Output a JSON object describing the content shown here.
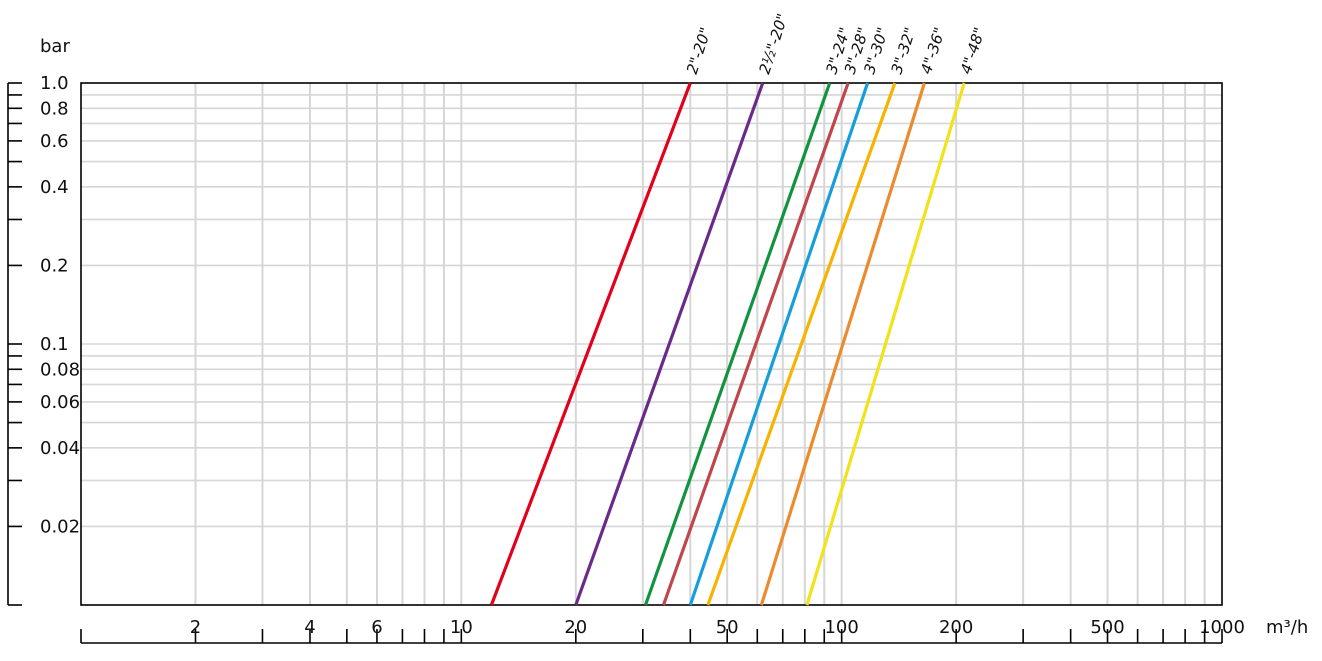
{
  "chart_data": {
    "type": "line",
    "title": "",
    "xlabel": "m³/h",
    "ylabel": "bar",
    "x_scale": "log",
    "y_scale": "log",
    "xlim": [
      1,
      1000
    ],
    "ylim": [
      0.01,
      1.0
    ],
    "grid": true,
    "x_tick_labels": [
      {
        "value": 2,
        "label": "2"
      },
      {
        "value": 4,
        "label": "4"
      },
      {
        "value": 6,
        "label": "6"
      },
      {
        "value": 10,
        "label": "10"
      },
      {
        "value": 20,
        "label": "20"
      },
      {
        "value": 50,
        "label": "50"
      },
      {
        "value": 100,
        "label": "100"
      },
      {
        "value": 200,
        "label": "200"
      },
      {
        "value": 500,
        "label": "500"
      },
      {
        "value": 1000,
        "label": "1000"
      }
    ],
    "y_tick_labels": [
      {
        "value": 1.0,
        "label": "1.0"
      },
      {
        "value": 0.8,
        "label": "0.8"
      },
      {
        "value": 0.6,
        "label": "0.6"
      },
      {
        "value": 0.4,
        "label": "0.4"
      },
      {
        "value": 0.2,
        "label": "0.2"
      },
      {
        "value": 0.1,
        "label": "0.1"
      },
      {
        "value": 0.08,
        "label": "0.08"
      },
      {
        "value": 0.06,
        "label": "0.06"
      },
      {
        "value": 0.04,
        "label": "0.04"
      },
      {
        "value": 0.02,
        "label": "0.02"
      }
    ],
    "series": [
      {
        "name": "2\"-20\"",
        "color": "#e2001a",
        "x": [
          12,
          40
        ],
        "y": [
          0.01,
          1.0
        ]
      },
      {
        "name": "2½\"-20\"",
        "color": "#6a2a8a",
        "x": [
          20,
          62
        ],
        "y": [
          0.01,
          1.0
        ]
      },
      {
        "name": "3\"-24\"",
        "color": "#119340",
        "x": [
          30.5,
          93
        ],
        "y": [
          0.01,
          1.0
        ]
      },
      {
        "name": "3\"-28\"",
        "color": "#c0464c",
        "x": [
          34,
          104
        ],
        "y": [
          0.01,
          1.0
        ]
      },
      {
        "name": "3\"-30\"",
        "color": "#159ed9",
        "x": [
          40,
          117
        ],
        "y": [
          0.01,
          1.0
        ]
      },
      {
        "name": "3\"-32\"",
        "color": "#f7b300",
        "x": [
          44.5,
          138
        ],
        "y": [
          0.01,
          1.0
        ]
      },
      {
        "name": "4\"-36\"",
        "color": "#ec8a2e",
        "x": [
          61.5,
          165
        ],
        "y": [
          0.01,
          1.0
        ]
      },
      {
        "name": "4\"-48\"",
        "color": "#f2e21a",
        "x": [
          81,
          210
        ],
        "y": [
          0.01,
          1.0
        ]
      }
    ]
  }
}
